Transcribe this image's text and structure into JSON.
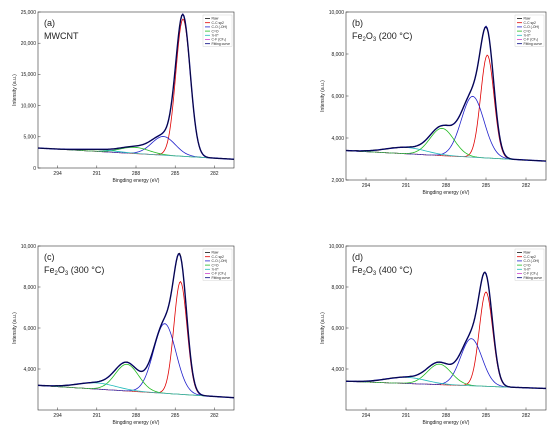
{
  "chart_data": [
    {
      "type": "line",
      "panel_label": "(a)",
      "sample": {
        "main": "MWCNT",
        "sub": "",
        "suffix": ""
      },
      "xlabel": "Bingding energy (eV)",
      "ylabel": "Intensity (a.u.)",
      "xlim": [
        295.5,
        280.5
      ],
      "ylim": [
        0,
        25000
      ],
      "yticks": [
        0,
        5000,
        10000,
        15000,
        20000,
        25000
      ],
      "ytick_labels": [
        "0",
        "5,000",
        "10,000",
        "15,000",
        "20,000",
        "25,000"
      ],
      "xticks": [
        294,
        291,
        288,
        285,
        282
      ],
      "legend": [
        "Raw",
        "C-C sp2",
        "C-O (-OH)",
        "C=O",
        "π-π*",
        "C-F (CF₂)",
        "Fitting curve"
      ],
      "colors": [
        "#111111",
        "#e00000",
        "#2222cc",
        "#22bb22",
        "#22bbbb",
        "#cc44cc",
        "#000080"
      ],
      "background": {
        "left": 3200,
        "right": 1400
      },
      "peaks": [
        {
          "component": "C-C sp2",
          "center": 284.4,
          "amplitude": 22000,
          "width": 0.55
        },
        {
          "component": "C-O (-OH)",
          "center": 285.9,
          "amplitude": 3000,
          "width": 0.9
        },
        {
          "component": "C=O",
          "center": 288.1,
          "amplitude": 1000,
          "width": 1.1
        },
        {
          "component": "π-π*",
          "center": 290.8,
          "amplitude": 300,
          "width": 1.4
        }
      ]
    },
    {
      "type": "line",
      "panel_label": "(b)",
      "sample": {
        "main": "Fe",
        "sub": "2",
        "suffix": "O",
        "sub2": "3",
        "temp": " (200 °C)"
      },
      "xlabel": "Bingding energy (eV)",
      "ylabel": "Intensity (a.u.)",
      "xlim": [
        295.5,
        280.5
      ],
      "ylim": [
        2000,
        10000
      ],
      "yticks": [
        2000,
        4000,
        6000,
        8000,
        10000
      ],
      "ytick_labels": [
        "2,000",
        "4,000",
        "6,000",
        "8,000",
        "10,000"
      ],
      "xticks": [
        294,
        291,
        288,
        285,
        282
      ],
      "legend": [
        "Raw",
        "C-C sp2",
        "C-O (-OH)",
        "C=O",
        "π-π*",
        "C-F (CF₂)",
        "Fitting curve"
      ],
      "colors": [
        "#111111",
        "#e00000",
        "#2222cc",
        "#22bb22",
        "#22bbbb",
        "#cc44cc",
        "#000080"
      ],
      "background": {
        "left": 3400,
        "right": 2900
      },
      "peaks": [
        {
          "component": "C-C sp2",
          "center": 284.9,
          "amplitude": 4900,
          "width": 0.5
        },
        {
          "component": "C-O (-OH)",
          "center": 286.0,
          "amplitude": 2900,
          "width": 0.85
        },
        {
          "component": "C=O",
          "center": 288.3,
          "amplitude": 1300,
          "width": 0.9
        },
        {
          "component": "π-π*",
          "center": 291.0,
          "amplitude": 300,
          "width": 1.5
        }
      ]
    },
    {
      "type": "line",
      "panel_label": "(c)",
      "sample": {
        "main": "Fe",
        "sub": "2",
        "suffix": "O",
        "sub2": "3",
        "temp": " (300 °C)"
      },
      "xlabel": "Bingding energy (eV)",
      "ylabel": "Intensity (a.u.)",
      "xlim": [
        295.5,
        280.5
      ],
      "ylim": [
        2000,
        10000
      ],
      "yticks": [
        4000,
        6000,
        8000,
        10000
      ],
      "ytick_labels": [
        "4,000",
        "6,000",
        "8,000",
        "10,000"
      ],
      "xticks": [
        294,
        291,
        288,
        285,
        282
      ],
      "legend": [
        "Raw",
        "C-C sp2",
        "C-O (-OH)",
        "C=O",
        "π-π*",
        "C-F (CF₂)",
        "Fitting curve"
      ],
      "colors": [
        "#111111",
        "#e00000",
        "#2222cc",
        "#22bb22",
        "#22bbbb",
        "#cc44cc",
        "#000080"
      ],
      "background": {
        "left": 3200,
        "right": 2600
      },
      "peaks": [
        {
          "component": "C-C sp2",
          "center": 284.6,
          "amplitude": 5500,
          "width": 0.5
        },
        {
          "component": "C-O (-OH)",
          "center": 285.8,
          "amplitude": 3400,
          "width": 0.85
        },
        {
          "component": "C=O",
          "center": 288.7,
          "amplitude": 1300,
          "width": 0.9
        },
        {
          "component": "π-π*",
          "center": 291.0,
          "amplitude": 300,
          "width": 1.5
        }
      ]
    },
    {
      "type": "line",
      "panel_label": "(d)",
      "sample": {
        "main": "Fe",
        "sub": "2",
        "suffix": "O",
        "sub2": "3",
        "temp": " (400 °C)"
      },
      "xlabel": "Bingding energy (eV)",
      "ylabel": "Intensity (a.u.)",
      "xlim": [
        295.5,
        280.5
      ],
      "ylim": [
        2000,
        10000
      ],
      "yticks": [
        4000,
        6000,
        8000,
        10000
      ],
      "ytick_labels": [
        "4,000",
        "6,000",
        "8,000",
        "10,000"
      ],
      "xticks": [
        294,
        291,
        288,
        285,
        282
      ],
      "legend": [
        "Raw",
        "C-C sp2",
        "C-O (-OH)",
        "C=O",
        "π-π*",
        "C-F (CF₂)",
        "Fitting curve"
      ],
      "colors": [
        "#111111",
        "#e00000",
        "#2222cc",
        "#22bb22",
        "#22bbbb",
        "#cc44cc",
        "#000080"
      ],
      "background": {
        "left": 3400,
        "right": 3050
      },
      "peaks": [
        {
          "component": "C-C sp2",
          "center": 285.0,
          "amplitude": 4600,
          "width": 0.5
        },
        {
          "component": "C-O (-OH)",
          "center": 286.1,
          "amplitude": 2300,
          "width": 0.8
        },
        {
          "component": "C=O",
          "center": 288.5,
          "amplitude": 1000,
          "width": 0.9
        },
        {
          "component": "π-π*",
          "center": 291.0,
          "amplitude": 300,
          "width": 1.5
        }
      ]
    }
  ]
}
